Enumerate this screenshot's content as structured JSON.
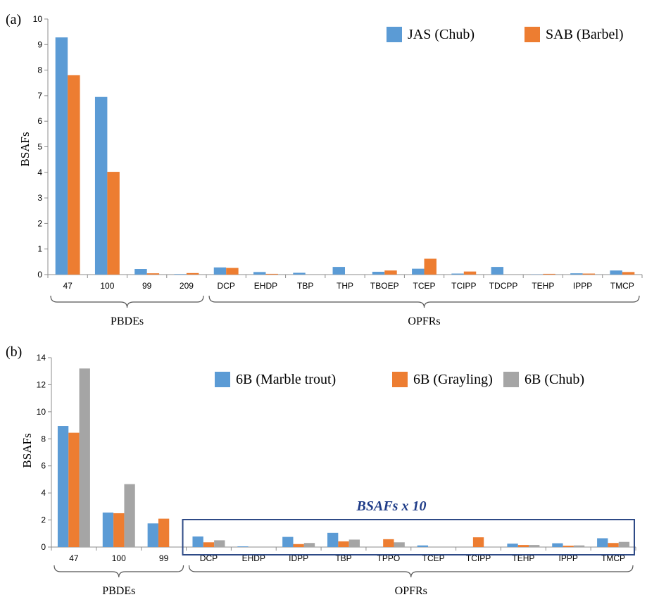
{
  "figure": {
    "colors": {
      "blue": "#5b9bd5",
      "orange": "#ed7d31",
      "gray": "#a5a5a5",
      "box": "#2e4a86",
      "annotation": "#1f3c88",
      "axis": "#8c8c8c"
    }
  },
  "chart_data": [
    {
      "panel_label": "(a)",
      "type": "bar",
      "ylabel": "BSAFs",
      "ylim": [
        0,
        10
      ],
      "yticks": [
        "0",
        "1",
        "2",
        "3",
        "4",
        "5",
        "6",
        "7",
        "8",
        "9",
        "10"
      ],
      "categories": [
        "47",
        "100",
        "99",
        "209",
        "DCP",
        "EHDP",
        "TBP",
        "THP",
        "TBOEP",
        "TCEP",
        "TCIPP",
        "TDCPP",
        "TEHP",
        "IPPP",
        "TMCP"
      ],
      "groups": [
        {
          "label": "PBDEs",
          "from": 0,
          "to": 3
        },
        {
          "label": "OPFRs",
          "from": 4,
          "to": 14
        }
      ],
      "legend_position": "top-right",
      "series": [
        {
          "name": "JAS (Chub)",
          "color": "#5b9bd5",
          "values": [
            9.28,
            6.95,
            0.22,
            0.02,
            0.28,
            0.1,
            0.07,
            0.3,
            0.11,
            0.23,
            0.04,
            0.3,
            0.01,
            0.05,
            0.16
          ]
        },
        {
          "name": "SAB (Barbel)",
          "color": "#ed7d31",
          "values": [
            7.8,
            4.02,
            0.05,
            0.06,
            0.26,
            0.03,
            0.0,
            0.0,
            0.16,
            0.62,
            0.12,
            0.0,
            0.03,
            0.04,
            0.1
          ]
        }
      ]
    },
    {
      "panel_label": "(b)",
      "type": "bar",
      "ylabel": "BSAFs",
      "ylim": [
        0,
        14
      ],
      "yticks": [
        "0",
        "2",
        "4",
        "6",
        "8",
        "10",
        "12",
        "14"
      ],
      "categories": [
        "47",
        "100",
        "99",
        "DCP",
        "EHDP",
        "IDPP",
        "TBP",
        "TPPO",
        "TCEP",
        "TCIPP",
        "TEHP",
        "IPPP",
        "TMCP"
      ],
      "groups": [
        {
          "label": "PBDEs",
          "from": 0,
          "to": 2
        },
        {
          "label": "OPFRs",
          "from": 3,
          "to": 12
        }
      ],
      "annotation": "BSAFs x 10",
      "legend_position": "top-right",
      "series": [
        {
          "name": "6B (Marble trout)",
          "color": "#5b9bd5",
          "values": [
            8.95,
            2.55,
            1.75,
            0.78,
            0.05,
            0.75,
            1.05,
            0.0,
            0.12,
            0.0,
            0.25,
            0.28,
            0.65
          ]
        },
        {
          "name": "6B (Grayling)",
          "color": "#ed7d31",
          "values": [
            8.45,
            2.5,
            2.1,
            0.35,
            0.0,
            0.22,
            0.42,
            0.58,
            0.0,
            0.72,
            0.15,
            0.1,
            0.3
          ]
        },
        {
          "name": "6B (Chub)",
          "color": "#a5a5a5",
          "values": [
            13.2,
            4.65,
            0.0,
            0.5,
            0.0,
            0.3,
            0.55,
            0.35,
            0.0,
            0.0,
            0.15,
            0.12,
            0.38
          ]
        }
      ]
    }
  ]
}
